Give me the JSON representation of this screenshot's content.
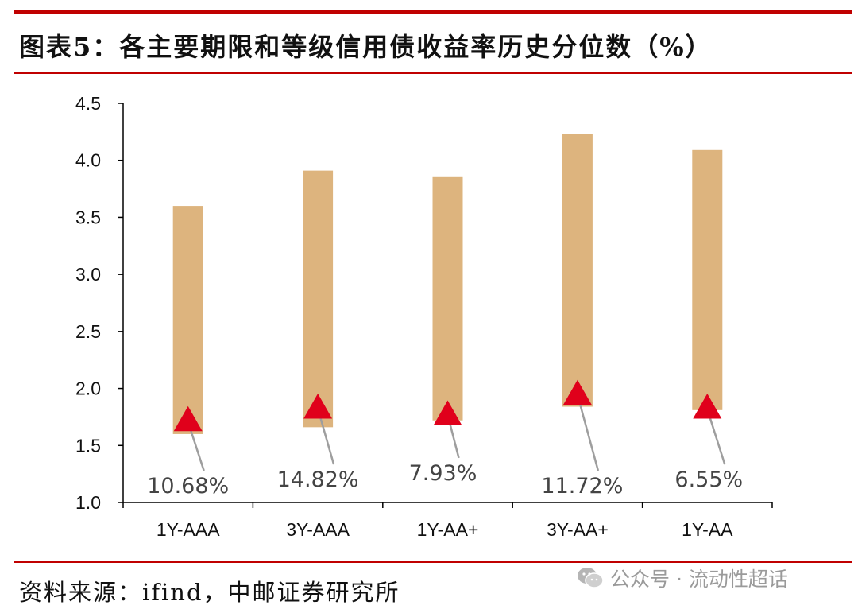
{
  "title": "图表5：各主要期限和等级信用债收益率历史分位数（%）",
  "source": "资料来源：ifind，中邮证券研究所",
  "watermark": {
    "icon": "wechat-icon",
    "text": "公众号 · 流动性超话"
  },
  "colors": {
    "accent": "#c00000",
    "bar": "#ddb47e",
    "marker": "#e0001b",
    "leader": "#9e9e9e",
    "axis": "#000000"
  },
  "chart_data": {
    "type": "bar",
    "subtype": "floating-range-with-current-marker",
    "categories": [
      "1Y-AAA",
      "3Y-AAA",
      "1Y-AA+",
      "3Y-AA+",
      "1Y-AA"
    ],
    "series": [
      {
        "name": "",
        "low": [
          1.6,
          1.66,
          1.72,
          1.84,
          1.81
        ],
        "high": [
          3.6,
          3.91,
          3.86,
          4.23,
          4.09
        ]
      },
      {
        "name": "",
        "values": [
          1.72,
          1.83,
          1.77,
          1.95,
          1.83
        ]
      }
    ],
    "percentile_labels": [
      "10.68%",
      "14.82%",
      "7.93%",
      "11.72%",
      "6.55%"
    ],
    "ylim": [
      1.0,
      4.5
    ],
    "yticks": [
      "1.0",
      "1.5",
      "2.0",
      "2.5",
      "3.0",
      "3.5",
      "4.0",
      "4.5"
    ],
    "xlabel": "",
    "ylabel": "",
    "grid": false,
    "legend": "none"
  }
}
